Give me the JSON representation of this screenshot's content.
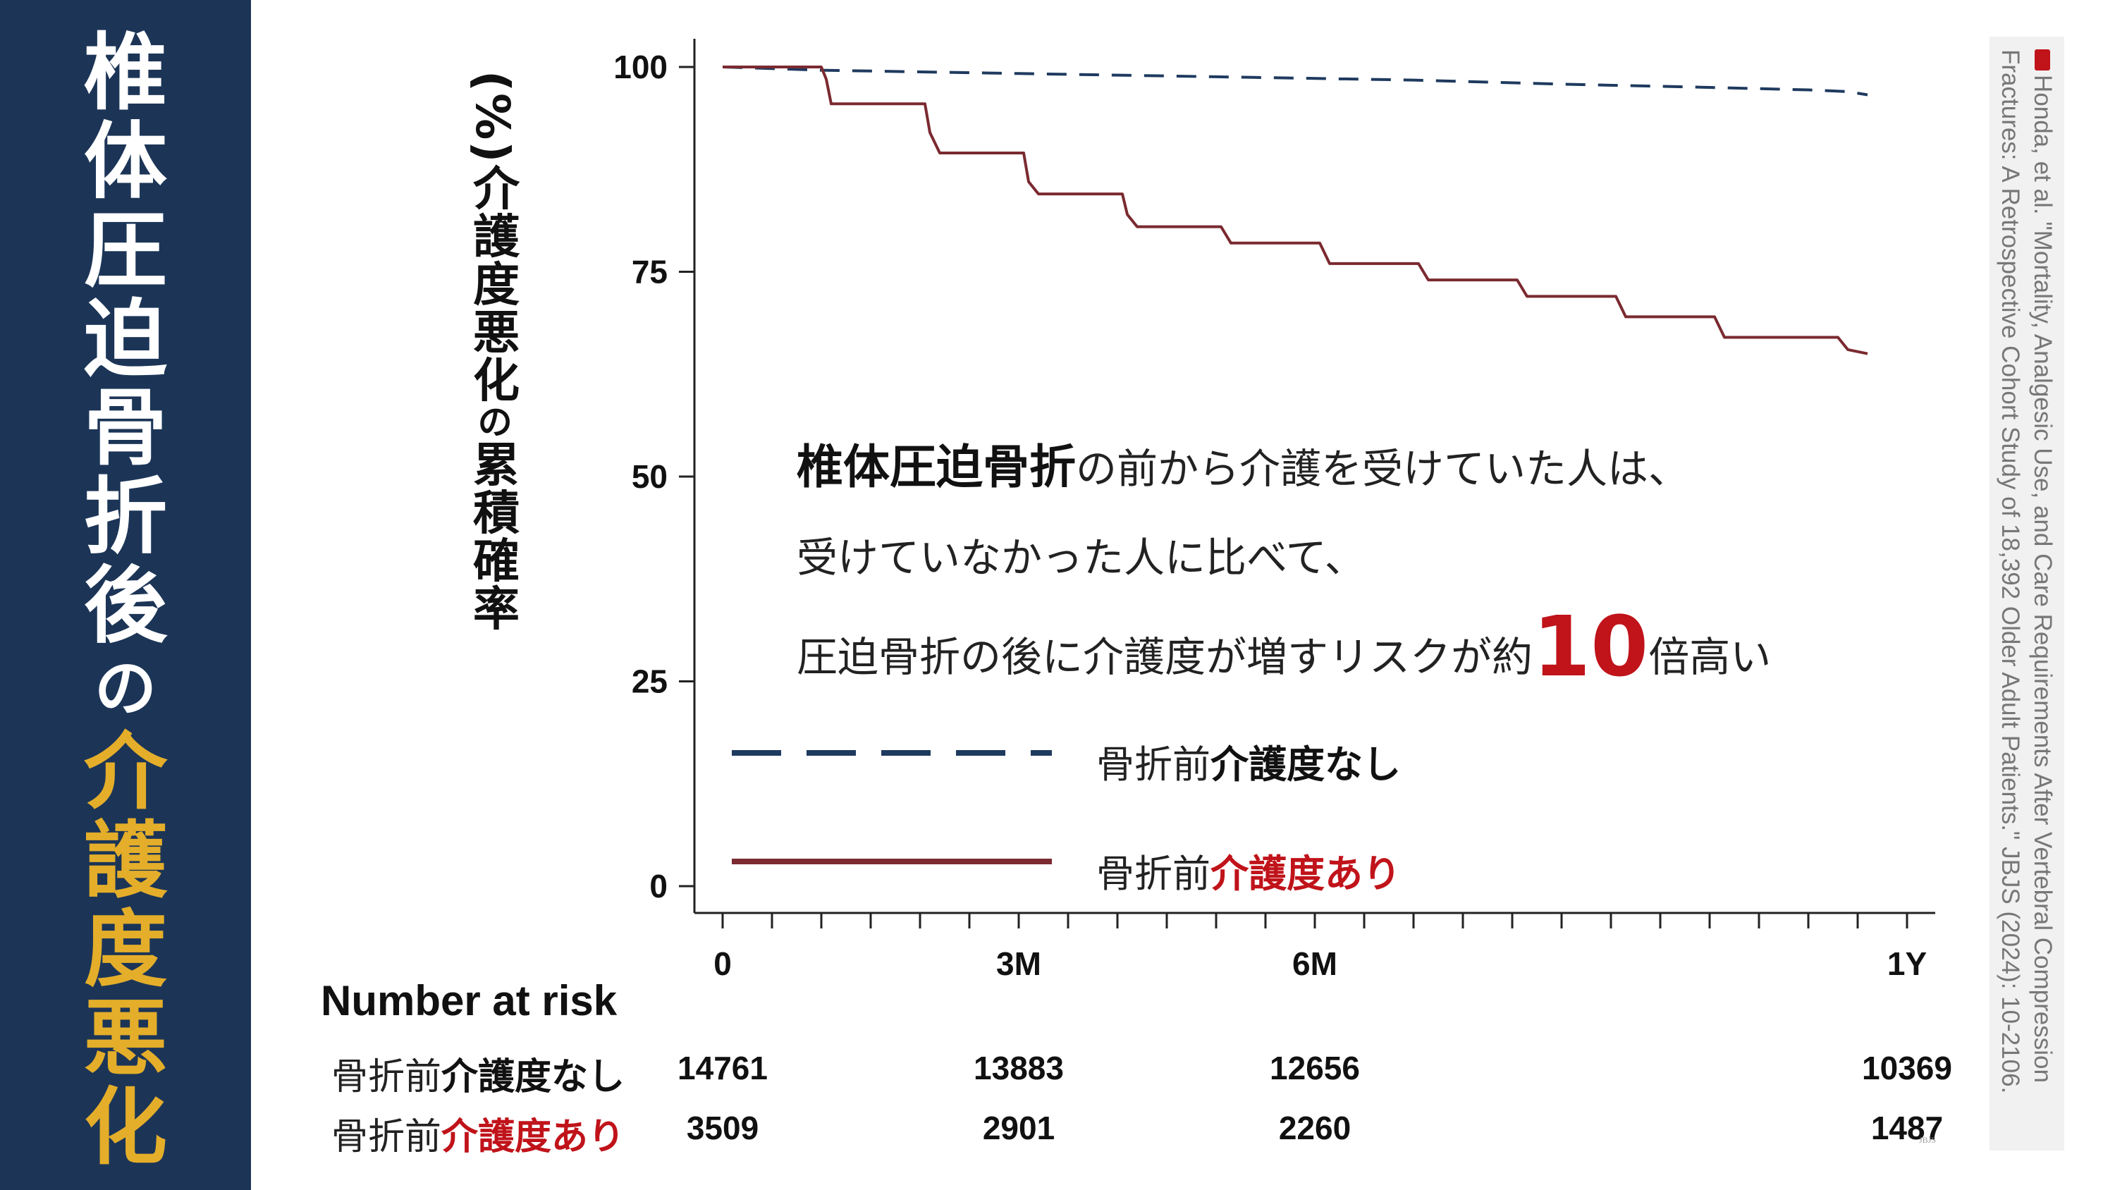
{
  "sidebar": {
    "title_main": "椎体圧迫骨折後",
    "title_particle": "の",
    "title_highlight": "介護度悪化",
    "bg_color": "#1c3557",
    "highlight_color": "#e4ae2a"
  },
  "annotation": {
    "line1_strong": "椎体圧迫骨折",
    "line1_rest": "の前から介護を受けていた人は、",
    "line2": "受けていなかった人に比べて、",
    "line3_pre": "圧迫骨折の後に介護度が増すリスクが約",
    "line3_big": "10",
    "line3_post": "倍高い"
  },
  "legend": [
    {
      "prefix": "骨折前",
      "emph": "介護度なし",
      "style": "dashed",
      "color": "#1f3a5f",
      "emph_color": "#111111"
    },
    {
      "prefix": "骨折前",
      "emph": "介護度あり",
      "style": "solid",
      "color": "#7a2a30",
      "emph_color": "#c0131a"
    }
  ],
  "risk_table": {
    "title": "Number at risk",
    "rows": [
      {
        "prefix": "骨折前",
        "emph": "介護度なし",
        "emph_color": "#111111",
        "values": [
          "14761",
          "13883",
          "12656",
          "10369"
        ]
      },
      {
        "prefix": "骨折前",
        "emph": "介護度あり",
        "emph_color": "#c0131a",
        "values": [
          "3509",
          "2901",
          "2260",
          "1487"
        ]
      }
    ]
  },
  "citation": "Honda, et al. \"Mortality, Analgesic Use, and Care Requirements After Vertebral Compression Fractures: A Retrospective Cohort Study of 18,392 Older Adult Patients.\" JBJS (2024): 10-2106.",
  "watermark": "JBJS",
  "chart_data": {
    "type": "line",
    "title": "",
    "ylabel_main": "介護度悪化",
    "ylabel_particle": "の",
    "ylabel_rest": "累積確率",
    "ylabel_unit": "(%)",
    "xlabel": "",
    "x_unit": "months",
    "xlim": [
      0,
      12
    ],
    "ylim": [
      0,
      100
    ],
    "x_ticks": [
      {
        "value": 0,
        "label": "0"
      },
      {
        "value": 3,
        "label": "3M"
      },
      {
        "value": 6,
        "label": "6M"
      },
      {
        "value": 12,
        "label": "1Y"
      }
    ],
    "x_minor_ticks": [
      0.5,
      1,
      1.5,
      2,
      2.5,
      3.5,
      4,
      4.5,
      5,
      5.5,
      6.5,
      7,
      7.5,
      8,
      8.5,
      9,
      9.5,
      10,
      10.5,
      11,
      11.5
    ],
    "y_ticks": [
      0,
      25,
      50,
      75,
      100
    ],
    "grid": false,
    "legend_position": "lower-left inside",
    "series": [
      {
        "name": "骨折前介護度なし",
        "style": "dashed",
        "color": "#1f3a5f",
        "points": [
          [
            0,
            100
          ],
          [
            1,
            99.6
          ],
          [
            3,
            99.2
          ],
          [
            5,
            98.8
          ],
          [
            7,
            98.4
          ],
          [
            8.5,
            97.9
          ],
          [
            10,
            97.5
          ],
          [
            11,
            97.2
          ],
          [
            11.4,
            97.0
          ],
          [
            11.6,
            96.6
          ]
        ]
      },
      {
        "name": "骨折前介護度あり",
        "style": "solid",
        "color": "#7a2a30",
        "points": [
          [
            0,
            100
          ],
          [
            1.0,
            100
          ],
          [
            1.05,
            98.5
          ],
          [
            1.1,
            95.5
          ],
          [
            2.05,
            95.5
          ],
          [
            2.1,
            92
          ],
          [
            2.2,
            89.5
          ],
          [
            3.05,
            89.5
          ],
          [
            3.1,
            86
          ],
          [
            3.2,
            84.5
          ],
          [
            4.05,
            84.5
          ],
          [
            4.1,
            82
          ],
          [
            4.2,
            80.5
          ],
          [
            5.05,
            80.5
          ],
          [
            5.15,
            78.5
          ],
          [
            6.05,
            78.5
          ],
          [
            6.15,
            76
          ],
          [
            7.05,
            76
          ],
          [
            7.15,
            74
          ],
          [
            8.05,
            74
          ],
          [
            8.15,
            72
          ],
          [
            9.05,
            72
          ],
          [
            9.15,
            69.5
          ],
          [
            10.05,
            69.5
          ],
          [
            10.15,
            67
          ],
          [
            11.3,
            67
          ],
          [
            11.4,
            65.5
          ],
          [
            11.6,
            65
          ]
        ]
      }
    ]
  }
}
